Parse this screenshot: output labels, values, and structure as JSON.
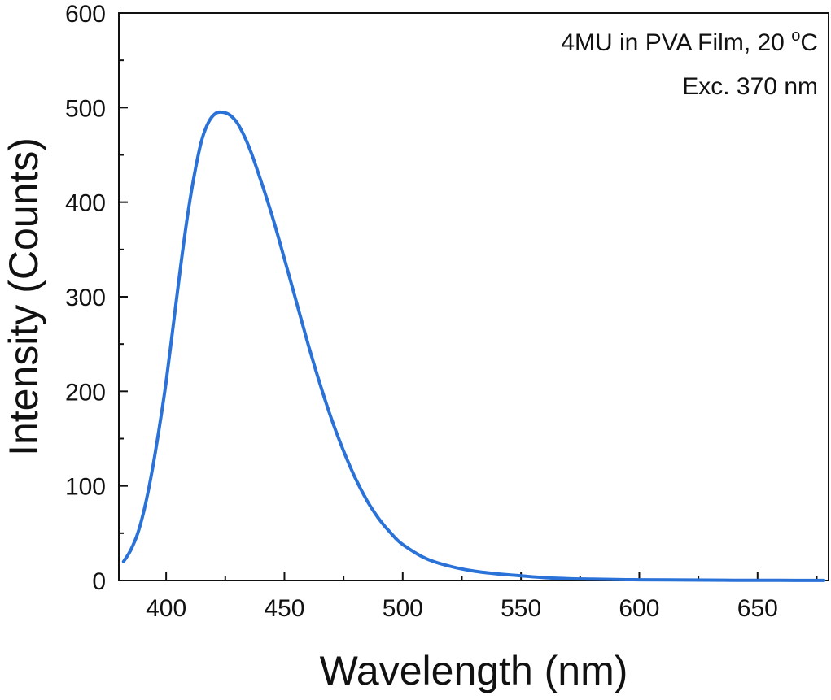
{
  "chart_data": {
    "type": "line",
    "title": "",
    "xlabel": "Wavelength (nm)",
    "ylabel": "Intensity (Counts)",
    "xlim": [
      380,
      680
    ],
    "ylim": [
      0,
      600
    ],
    "x_ticks": [
      400,
      450,
      500,
      550,
      600,
      650
    ],
    "y_ticks": [
      0,
      100,
      200,
      300,
      400,
      500,
      600
    ],
    "x_tick_labels": [
      "400",
      "450",
      "500",
      "550",
      "600",
      "650"
    ],
    "y_tick_labels": [
      "0",
      "100",
      "200",
      "300",
      "400",
      "500",
      "600"
    ],
    "grid": false,
    "legend": "none",
    "annotations": {
      "line1_prefix": "4MU in PVA Film, 20 ",
      "line1_degree": "o",
      "line1_suffix": "C",
      "line2": "Exc. 370 nm"
    },
    "series": [
      {
        "color": "#2a72d8",
        "x": [
          382,
          385,
          388,
          391,
          394,
          397,
          400,
          403,
          406,
          409,
          412,
          415,
          418,
          421,
          424,
          427,
          430,
          433,
          436,
          440,
          445,
          450,
          455,
          460,
          465,
          470,
          475,
          480,
          485,
          490,
          495,
          500,
          510,
          520,
          530,
          540,
          550,
          560,
          570,
          580,
          590,
          600,
          620,
          640,
          660,
          678
        ],
        "y": [
          20,
          32,
          50,
          78,
          115,
          160,
          210,
          270,
          330,
          385,
          430,
          465,
          485,
          494,
          495,
          492,
          484,
          470,
          452,
          423,
          384,
          340,
          295,
          250,
          208,
          170,
          137,
          108,
          84,
          65,
          50,
          38,
          23,
          15,
          10,
          7,
          5,
          3,
          2,
          1.5,
          1,
          0.8,
          0.5,
          0.3,
          0.2,
          0.1
        ]
      }
    ]
  }
}
